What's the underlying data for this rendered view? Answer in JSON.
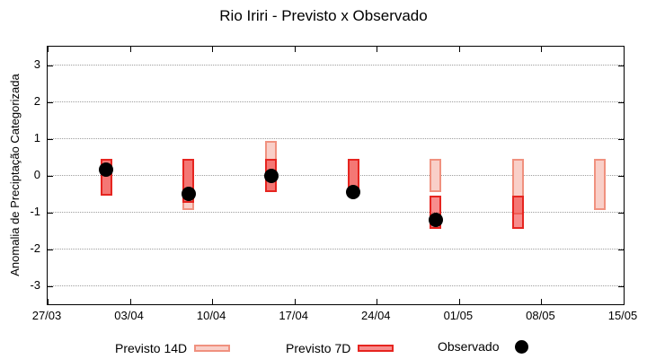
{
  "window": {
    "title": "Rio Iriri - Previsto x Observado"
  },
  "colors": {
    "p14_fill": "#f9cfc8",
    "p14_border": "#f0917f",
    "p7_fill": "rgba(240,48,48,0.55)",
    "p7_border": "#e62520",
    "observed": "#000000",
    "gridline": "#9e9e9e",
    "axis": "#000000"
  },
  "chart_data": {
    "type": "bar",
    "subtype": "forecast-range-bars-with-observed-points",
    "title": "Rio Iriri - Previsto x Observado",
    "xlabel": "",
    "ylabel": "Anomalia de Preciptação Categorizada",
    "ylim": [
      -3.5,
      3.5
    ],
    "y_ticks": [
      3,
      2,
      1,
      0,
      -1,
      -2,
      -3
    ],
    "x_range_days": [
      0,
      49
    ],
    "x_ticks": [
      {
        "day": 0,
        "label": "27/03"
      },
      {
        "day": 7,
        "label": "03/04"
      },
      {
        "day": 14,
        "label": "10/04"
      },
      {
        "day": 21,
        "label": "17/04"
      },
      {
        "day": 28,
        "label": "24/04"
      },
      {
        "day": 35,
        "label": "01/05"
      },
      {
        "day": 42,
        "label": "08/05"
      },
      {
        "day": 49,
        "label": "15/05"
      }
    ],
    "grid": "horizontal-dotted",
    "legend_position": "bottom",
    "series": [
      {
        "name": "Previsto 14D",
        "type": "range-bar"
      },
      {
        "name": "Previsto 7D",
        "type": "range-bar"
      },
      {
        "name": "Observado",
        "type": "point"
      }
    ],
    "bars": [
      {
        "date": "01/04",
        "day": 5,
        "previsto_14d": [
          -0.55,
          0.45
        ],
        "previsto_7d": [
          -0.55,
          0.45
        ],
        "observado": 0.15
      },
      {
        "date": "08/04",
        "day": 12,
        "previsto_14d": [
          -0.95,
          0.45
        ],
        "previsto_7d": [
          -0.75,
          0.45
        ],
        "observado": -0.5
      },
      {
        "date": "15/04",
        "day": 19,
        "previsto_14d": [
          -0.45,
          0.95
        ],
        "previsto_7d": [
          -0.45,
          0.45
        ],
        "observado": 0.0
      },
      {
        "date": "22/04",
        "day": 26,
        "previsto_14d": [
          -0.45,
          0.45
        ],
        "previsto_7d": [
          -0.45,
          0.45
        ],
        "observado": -0.45
      },
      {
        "date": "29/04",
        "day": 33,
        "previsto_14d": [
          -0.45,
          0.45
        ],
        "previsto_7d": [
          -1.45,
          -0.55
        ],
        "observado": -1.2
      },
      {
        "date": "06/05",
        "day": 40,
        "previsto_14d": [
          -1.05,
          0.45
        ],
        "previsto_7d": [
          -1.45,
          -0.55
        ],
        "observado": null
      },
      {
        "date": "13/05",
        "day": 47,
        "previsto_14d": [
          -0.95,
          0.45
        ],
        "previsto_7d": null,
        "observado": null
      }
    ]
  }
}
